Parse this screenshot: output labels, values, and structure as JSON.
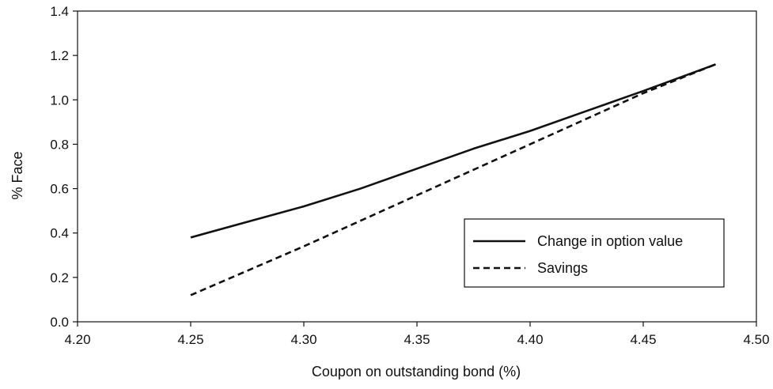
{
  "chart_data": {
    "type": "line",
    "title": "",
    "xlabel": "Coupon on outstanding bond (%)",
    "ylabel": "% Face",
    "xlim": [
      4.2,
      4.5
    ],
    "ylim": [
      0.0,
      1.4
    ],
    "x_ticks": [
      "4.20",
      "4.25",
      "4.30",
      "4.35",
      "4.40",
      "4.45",
      "4.50"
    ],
    "y_ticks": [
      "0.0",
      "0.2",
      "0.4",
      "0.6",
      "0.8",
      "1.0",
      "1.2",
      "1.4"
    ],
    "grid": false,
    "legend_position": "right",
    "series": [
      {
        "name": "Change in option value",
        "style": "solid",
        "color": "#111111",
        "x": [
          4.25,
          4.275,
          4.3,
          4.325,
          4.35,
          4.375,
          4.4,
          4.425,
          4.45,
          4.482
        ],
        "y": [
          0.38,
          0.45,
          0.52,
          0.6,
          0.69,
          0.78,
          0.86,
          0.95,
          1.04,
          1.16
        ]
      },
      {
        "name": "Savings",
        "style": "dashed",
        "color": "#111111",
        "x": [
          4.25,
          4.3,
          4.35,
          4.4,
          4.45,
          4.482
        ],
        "y": [
          0.12,
          0.34,
          0.57,
          0.8,
          1.03,
          1.16
        ]
      }
    ]
  }
}
